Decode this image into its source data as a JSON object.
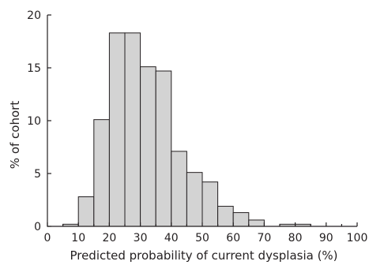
{
  "chart_data": {
    "type": "bar",
    "histogram": true,
    "title": "",
    "xlabel": "Predicted probability of current dysplasia (%)",
    "ylabel": "% of cohort",
    "xlim": [
      0,
      100
    ],
    "ylim": [
      0,
      20
    ],
    "x_ticks": [
      "0",
      "10",
      "20",
      "30",
      "40",
      "50",
      "60",
      "70",
      "80",
      "90",
      "100"
    ],
    "y_ticks": [
      "0",
      "5",
      "10",
      "15",
      "20"
    ],
    "bin_width": 5,
    "bins": [
      {
        "start": 5,
        "value": 0.2
      },
      {
        "start": 10,
        "value": 2.8
      },
      {
        "start": 15,
        "value": 10.1
      },
      {
        "start": 20,
        "value": 18.3
      },
      {
        "start": 25,
        "value": 18.3
      },
      {
        "start": 30,
        "value": 15.1
      },
      {
        "start": 35,
        "value": 14.7
      },
      {
        "start": 40,
        "value": 7.1
      },
      {
        "start": 45,
        "value": 5.1
      },
      {
        "start": 50,
        "value": 4.2
      },
      {
        "start": 55,
        "value": 1.9
      },
      {
        "start": 60,
        "value": 1.3
      },
      {
        "start": 65,
        "value": 0.6
      },
      {
        "start": 75,
        "value": 0.2
      },
      {
        "start": 80,
        "value": 0.2
      }
    ],
    "bar_fill": "#d3d3d3",
    "grid": false,
    "legend": "none"
  }
}
